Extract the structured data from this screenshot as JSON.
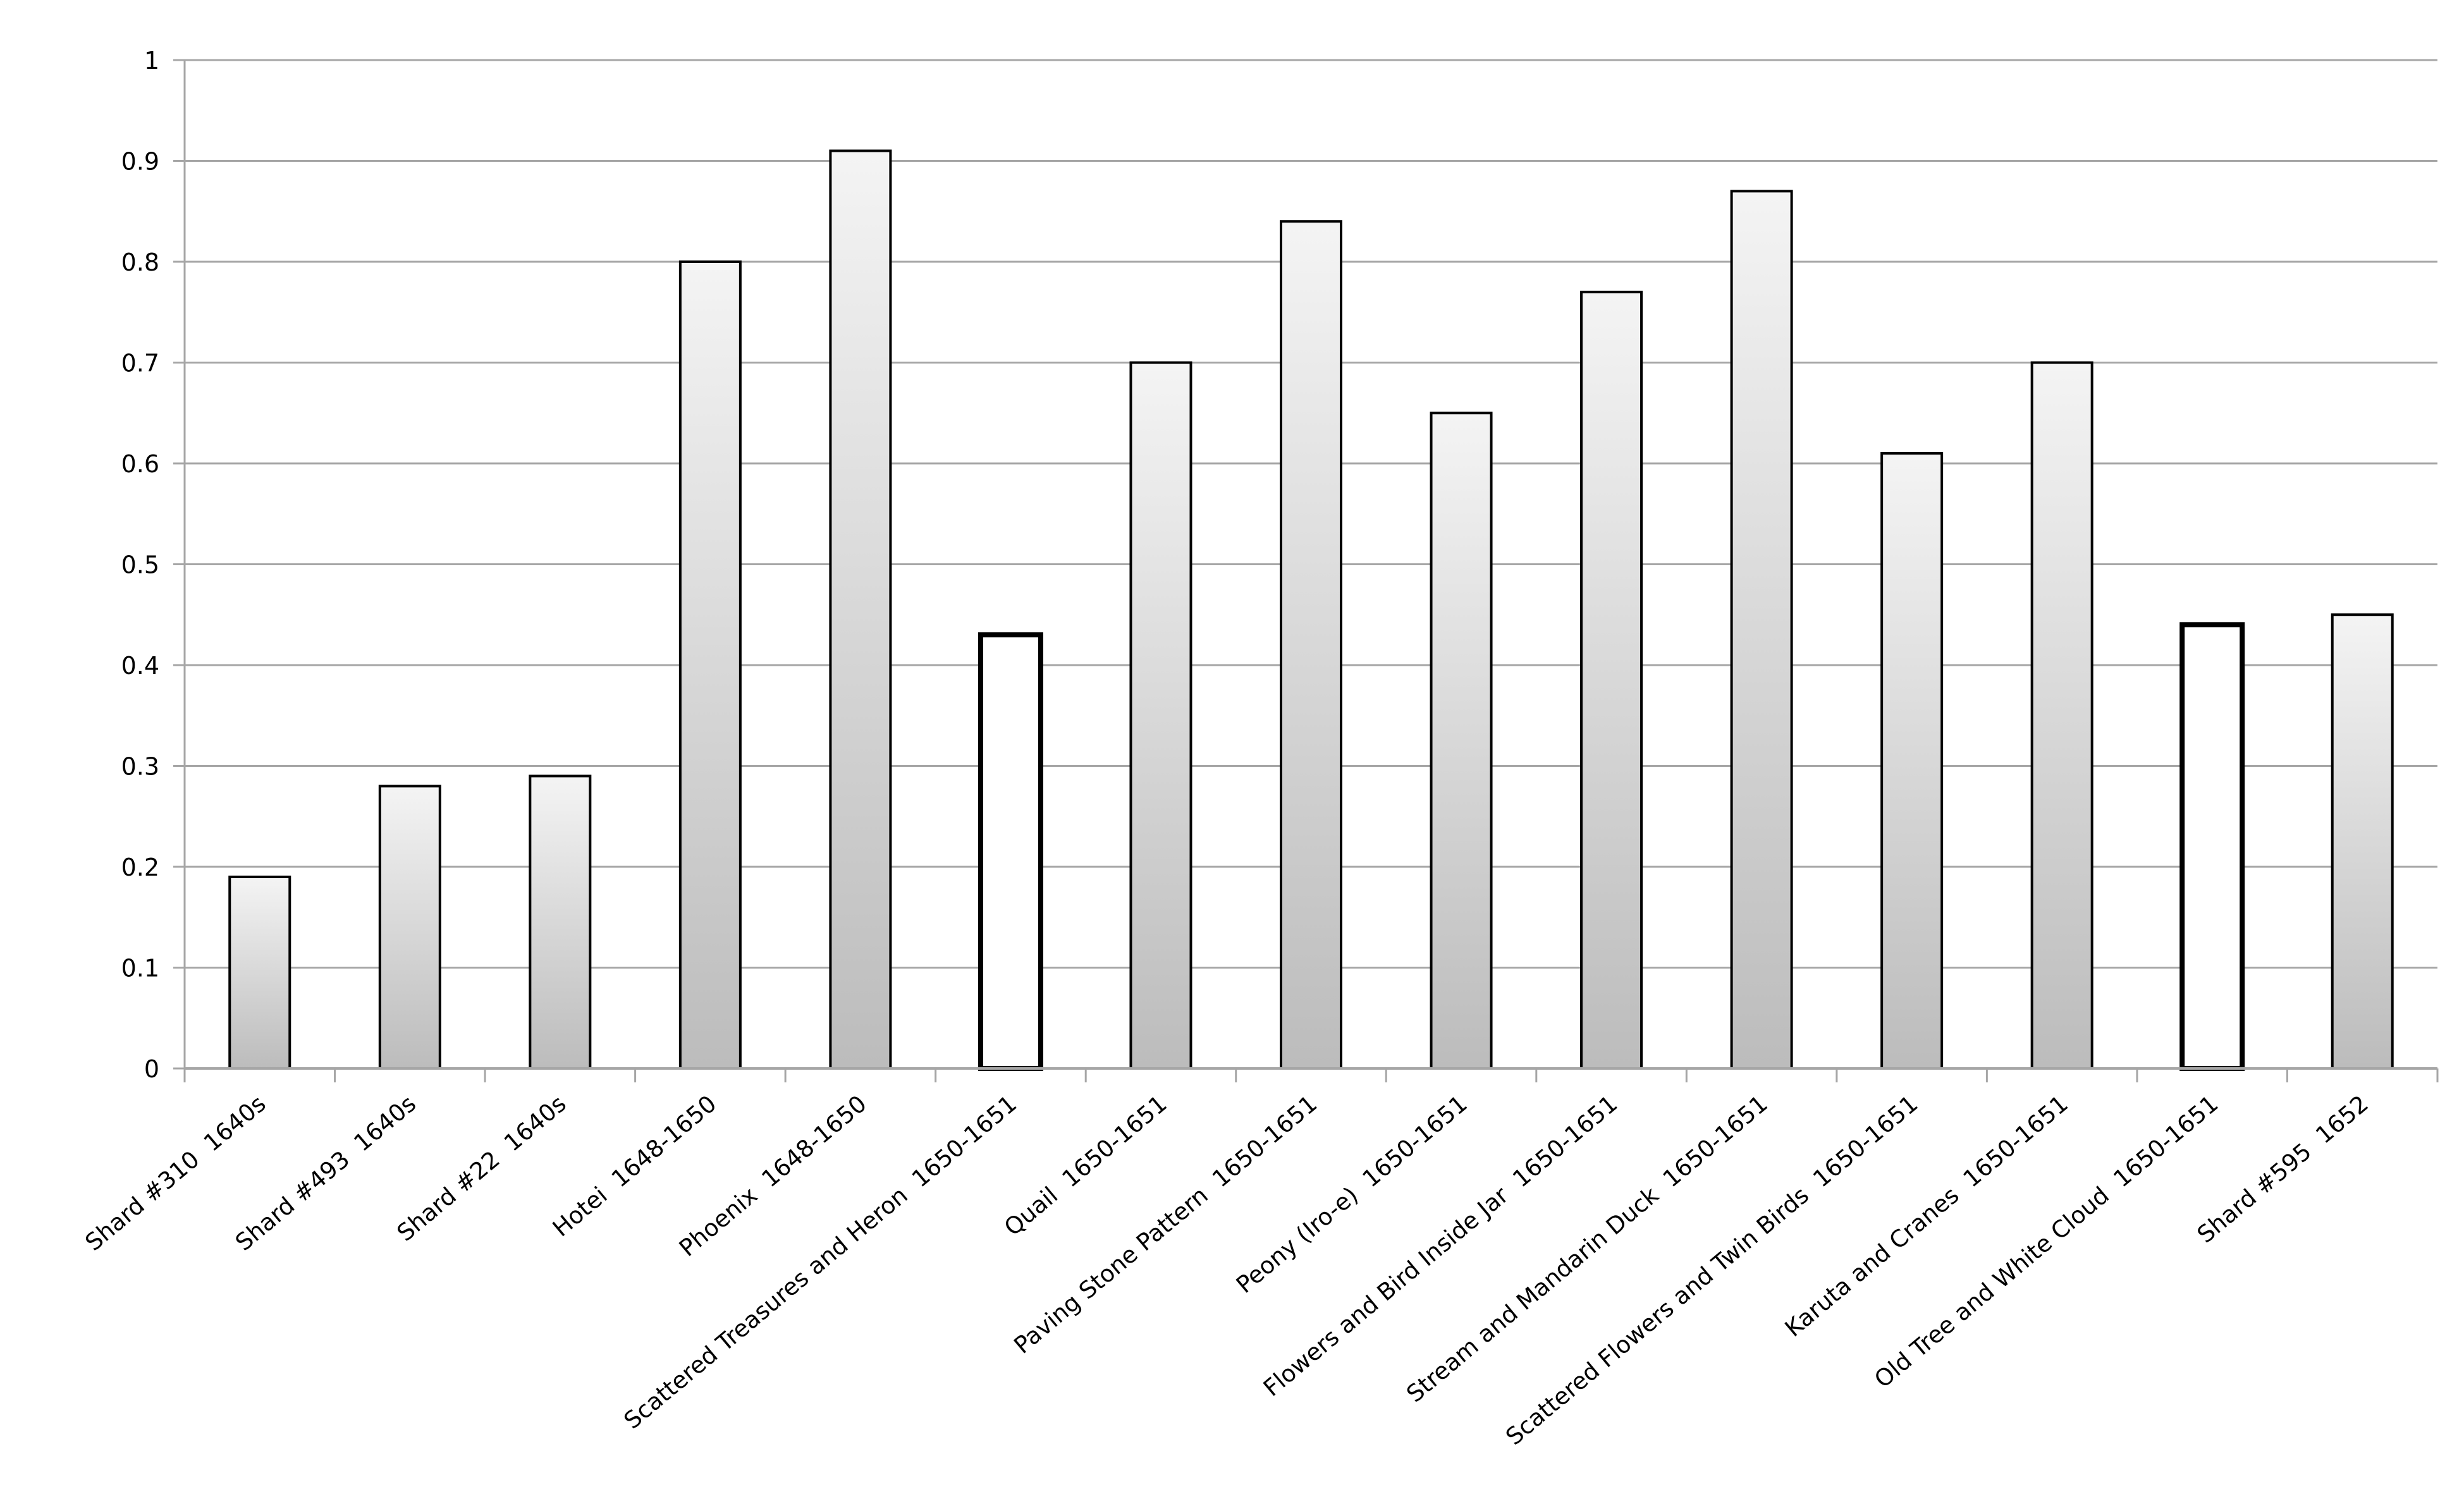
{
  "chart_data": {
    "type": "bar",
    "title": "",
    "xlabel": "",
    "ylabel": "",
    "ylim": [
      0,
      1
    ],
    "yticks": [
      "0",
      "0.1",
      "0.2",
      "0.3",
      "0.4",
      "0.5",
      "0.6",
      "0.7",
      "0.8",
      "0.9",
      "1"
    ],
    "grid": true,
    "categories": [
      "Shard #310  1640s",
      "Shard #493  1640s",
      "Shard #22  1640s",
      "Hotei  1648-1650",
      "Phoenix  1648-1650",
      "Scattered Treasures and Heron  1650-1651",
      "Quail  1650-1651",
      "Paving Stone Pattern  1650-1651",
      "Peony (Iro-e)  1650-1651",
      "Flowers and Bird Inside Jar  1650-1651",
      "Stream and Mandarin Duck  1650-1651",
      "Scattered Flowers and Twin Birds  1650-1651",
      "Karuta and Cranes  1650-1651",
      "Old Tree and White Cloud  1650-1651",
      "Shard #595  1652"
    ],
    "values": [
      0.19,
      0.28,
      0.29,
      0.8,
      0.91,
      0.43,
      0.7,
      0.84,
      0.65,
      0.77,
      0.87,
      0.61,
      0.7,
      0.44,
      0.45
    ],
    "highlighted": [
      false,
      false,
      false,
      false,
      false,
      true,
      false,
      false,
      false,
      false,
      false,
      false,
      false,
      true,
      false
    ],
    "colors": {
      "bar_top": "#f4f4f4",
      "bar_bottom": "#bcbcbc",
      "highlight_fill": "#ffffff",
      "grid": "#a6a6a6",
      "border": "#000000"
    }
  }
}
